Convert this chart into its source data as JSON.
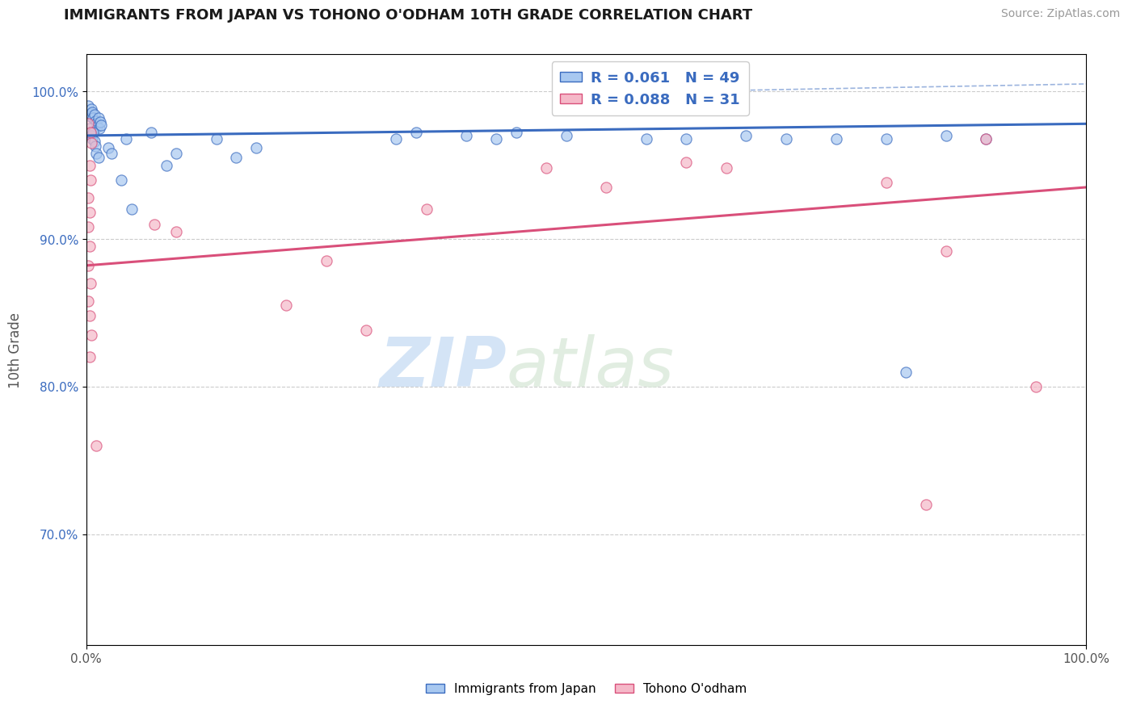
{
  "title": "IMMIGRANTS FROM JAPAN VS TOHONO O'ODHAM 10TH GRADE CORRELATION CHART",
  "source": "Source: ZipAtlas.com",
  "ylabel": "10th Grade",
  "legend_label1": "Immigrants from Japan",
  "legend_label2": "Tohono O'odham",
  "R1": 0.061,
  "N1": 49,
  "R2": 0.088,
  "N2": 31,
  "watermark_zip": "ZIP",
  "watermark_atlas": "atlas",
  "blue_color": "#a8c8f0",
  "pink_color": "#f5b8c8",
  "blue_line_color": "#3a6bbf",
  "pink_line_color": "#d94f7a",
  "blue_scatter": [
    [
      0.002,
      0.99
    ],
    [
      0.003,
      0.985
    ],
    [
      0.004,
      0.983
    ],
    [
      0.005,
      0.988
    ],
    [
      0.006,
      0.986
    ],
    [
      0.007,
      0.982
    ],
    [
      0.008,
      0.984
    ],
    [
      0.009,
      0.98
    ],
    [
      0.01,
      0.978
    ],
    [
      0.011,
      0.976
    ],
    [
      0.012,
      0.982
    ],
    [
      0.013,
      0.975
    ],
    [
      0.014,
      0.979
    ],
    [
      0.015,
      0.977
    ],
    [
      0.003,
      0.975
    ],
    [
      0.004,
      0.972
    ],
    [
      0.005,
      0.97
    ],
    [
      0.006,
      0.968
    ],
    [
      0.007,
      0.972
    ],
    [
      0.008,
      0.966
    ],
    [
      0.009,
      0.963
    ],
    [
      0.01,
      0.958
    ],
    [
      0.012,
      0.955
    ],
    [
      0.022,
      0.962
    ],
    [
      0.025,
      0.958
    ],
    [
      0.04,
      0.968
    ],
    [
      0.065,
      0.972
    ],
    [
      0.09,
      0.958
    ],
    [
      0.13,
      0.968
    ],
    [
      0.15,
      0.955
    ],
    [
      0.17,
      0.962
    ],
    [
      0.31,
      0.968
    ],
    [
      0.33,
      0.972
    ],
    [
      0.38,
      0.97
    ],
    [
      0.41,
      0.968
    ],
    [
      0.43,
      0.972
    ],
    [
      0.48,
      0.97
    ],
    [
      0.56,
      0.968
    ],
    [
      0.6,
      0.968
    ],
    [
      0.66,
      0.97
    ],
    [
      0.7,
      0.968
    ],
    [
      0.75,
      0.968
    ],
    [
      0.8,
      0.968
    ],
    [
      0.86,
      0.97
    ],
    [
      0.9,
      0.968
    ],
    [
      0.035,
      0.94
    ],
    [
      0.045,
      0.92
    ],
    [
      0.08,
      0.95
    ],
    [
      0.82,
      0.81
    ]
  ],
  "pink_scatter": [
    [
      0.002,
      0.978
    ],
    [
      0.004,
      0.972
    ],
    [
      0.005,
      0.965
    ],
    [
      0.003,
      0.95
    ],
    [
      0.004,
      0.94
    ],
    [
      0.002,
      0.928
    ],
    [
      0.003,
      0.918
    ],
    [
      0.002,
      0.908
    ],
    [
      0.003,
      0.895
    ],
    [
      0.002,
      0.882
    ],
    [
      0.004,
      0.87
    ],
    [
      0.002,
      0.858
    ],
    [
      0.003,
      0.848
    ],
    [
      0.005,
      0.835
    ],
    [
      0.003,
      0.82
    ],
    [
      0.068,
      0.91
    ],
    [
      0.09,
      0.905
    ],
    [
      0.2,
      0.855
    ],
    [
      0.24,
      0.885
    ],
    [
      0.28,
      0.838
    ],
    [
      0.34,
      0.92
    ],
    [
      0.46,
      0.948
    ],
    [
      0.52,
      0.935
    ],
    [
      0.6,
      0.952
    ],
    [
      0.64,
      0.948
    ],
    [
      0.8,
      0.938
    ],
    [
      0.86,
      0.892
    ],
    [
      0.9,
      0.968
    ],
    [
      0.95,
      0.8
    ],
    [
      0.84,
      0.72
    ],
    [
      0.01,
      0.76
    ]
  ],
  "xmin": 0.0,
  "xmax": 1.0,
  "ymin": 0.625,
  "ymax": 1.025,
  "ytick_values": [
    0.7,
    0.8,
    0.9,
    1.0
  ],
  "ytick_labels": [
    "70.0%",
    "80.0%",
    "90.0%",
    "100.0%"
  ],
  "blue_trendline": [
    0.0,
    1.0,
    0.97,
    0.978
  ],
  "pink_trendline": [
    0.0,
    1.0,
    0.882,
    0.935
  ],
  "grid_color": "#cccccc",
  "bg_color": "#ffffff"
}
